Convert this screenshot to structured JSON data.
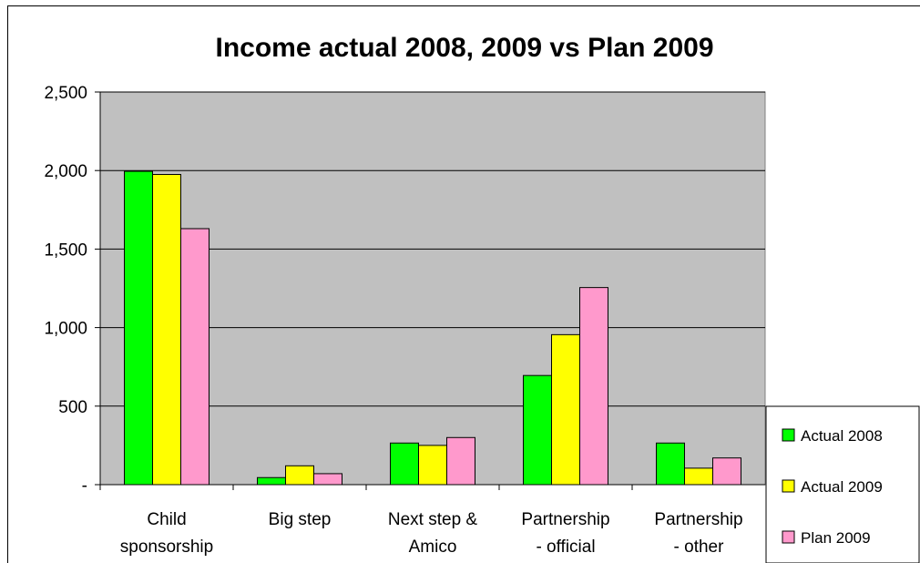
{
  "chart_data": {
    "type": "bar",
    "title": "Income actual 2008, 2009 vs Plan 2009",
    "xlabel": "",
    "ylabel": "",
    "ylim": [
      0,
      2500
    ],
    "yticks": [
      {
        "value": 0,
        "label": "-"
      },
      {
        "value": 500,
        "label": "500"
      },
      {
        "value": 1000,
        "label": "1,000"
      },
      {
        "value": 1500,
        "label": "1,500"
      },
      {
        "value": 2000,
        "label": "2,000"
      },
      {
        "value": 2500,
        "label": "2,500"
      }
    ],
    "categories": [
      [
        "Child",
        "sponsorship"
      ],
      [
        "Big step"
      ],
      [
        "Next step &",
        "Amico"
      ],
      [
        "Partnership",
        "- official"
      ],
      [
        "Partnership",
        "- other"
      ]
    ],
    "series": [
      {
        "name": "Actual 2008",
        "color": "#00ff00",
        "values": [
          1995,
          45,
          265,
          695,
          265
        ]
      },
      {
        "name": "Actual 2009",
        "color": "#ffff00",
        "values": [
          1975,
          120,
          250,
          955,
          105
        ]
      },
      {
        "name": "Plan 2009",
        "color": "#ff99cc",
        "values": [
          1630,
          70,
          300,
          1255,
          170
        ]
      }
    ],
    "grid": true,
    "plot_background": "#c0c0c0",
    "legend_position": "right"
  }
}
